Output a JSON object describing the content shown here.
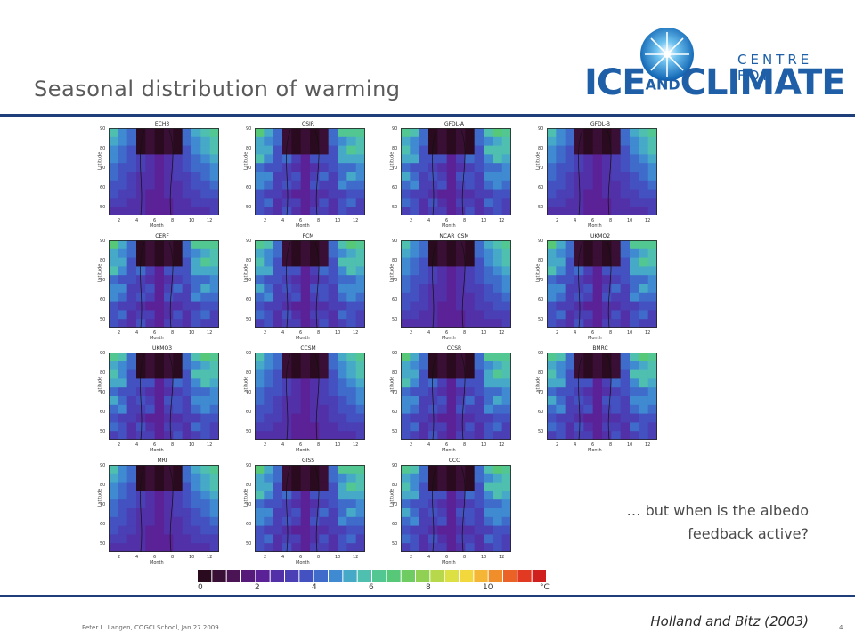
{
  "slide": {
    "title": "Seasonal distribution of warming",
    "question_line1": "… but when is the albedo",
    "question_line2": "feedback active?",
    "citation": "Holland and Bitz (2003)",
    "footer": "Peter L. Langen, COGCI School, Jan 27 2009",
    "page_number": "4"
  },
  "logo": {
    "centre_text": "CENTRE FOR",
    "ice": "ICE",
    "and": "AND",
    "climate": "CLIMATE",
    "color": "#1e5fa8"
  },
  "panels": {
    "axis_y_label": "Latitude",
    "axis_x_label": "Month",
    "y_ticks": [
      "90",
      "80",
      "70",
      "60",
      "50"
    ],
    "x_ticks": [
      "2",
      "4",
      "6",
      "8",
      "10",
      "12"
    ],
    "models": [
      "ECH3",
      "CSIR",
      "GFDL-A",
      "GFDL-B",
      "CERF",
      "PCM",
      "NCAR_CSM",
      "UKMO2",
      "UKMO3",
      "CCSM",
      "CCSR",
      "BMRC",
      "MRI",
      "GISS",
      "CCC"
    ]
  },
  "colorbar": {
    "labels": [
      "0",
      "2",
      "4",
      "6",
      "8",
      "10",
      "°C"
    ],
    "colors": [
      "#2a0a1e",
      "#3a0f35",
      "#4a1455",
      "#551a7a",
      "#5a2296",
      "#5230a8",
      "#4a3fb5",
      "#4352c0",
      "#3f6bca",
      "#3f8ad0",
      "#46a9c8",
      "#4fbfb0",
      "#52c792",
      "#57c878",
      "#6fcc62",
      "#90d052",
      "#b6d84a",
      "#dde043",
      "#f2d83c",
      "#f4b634",
      "#f08e2c",
      "#ea6226",
      "#e23a22",
      "#d0201e"
    ]
  }
}
